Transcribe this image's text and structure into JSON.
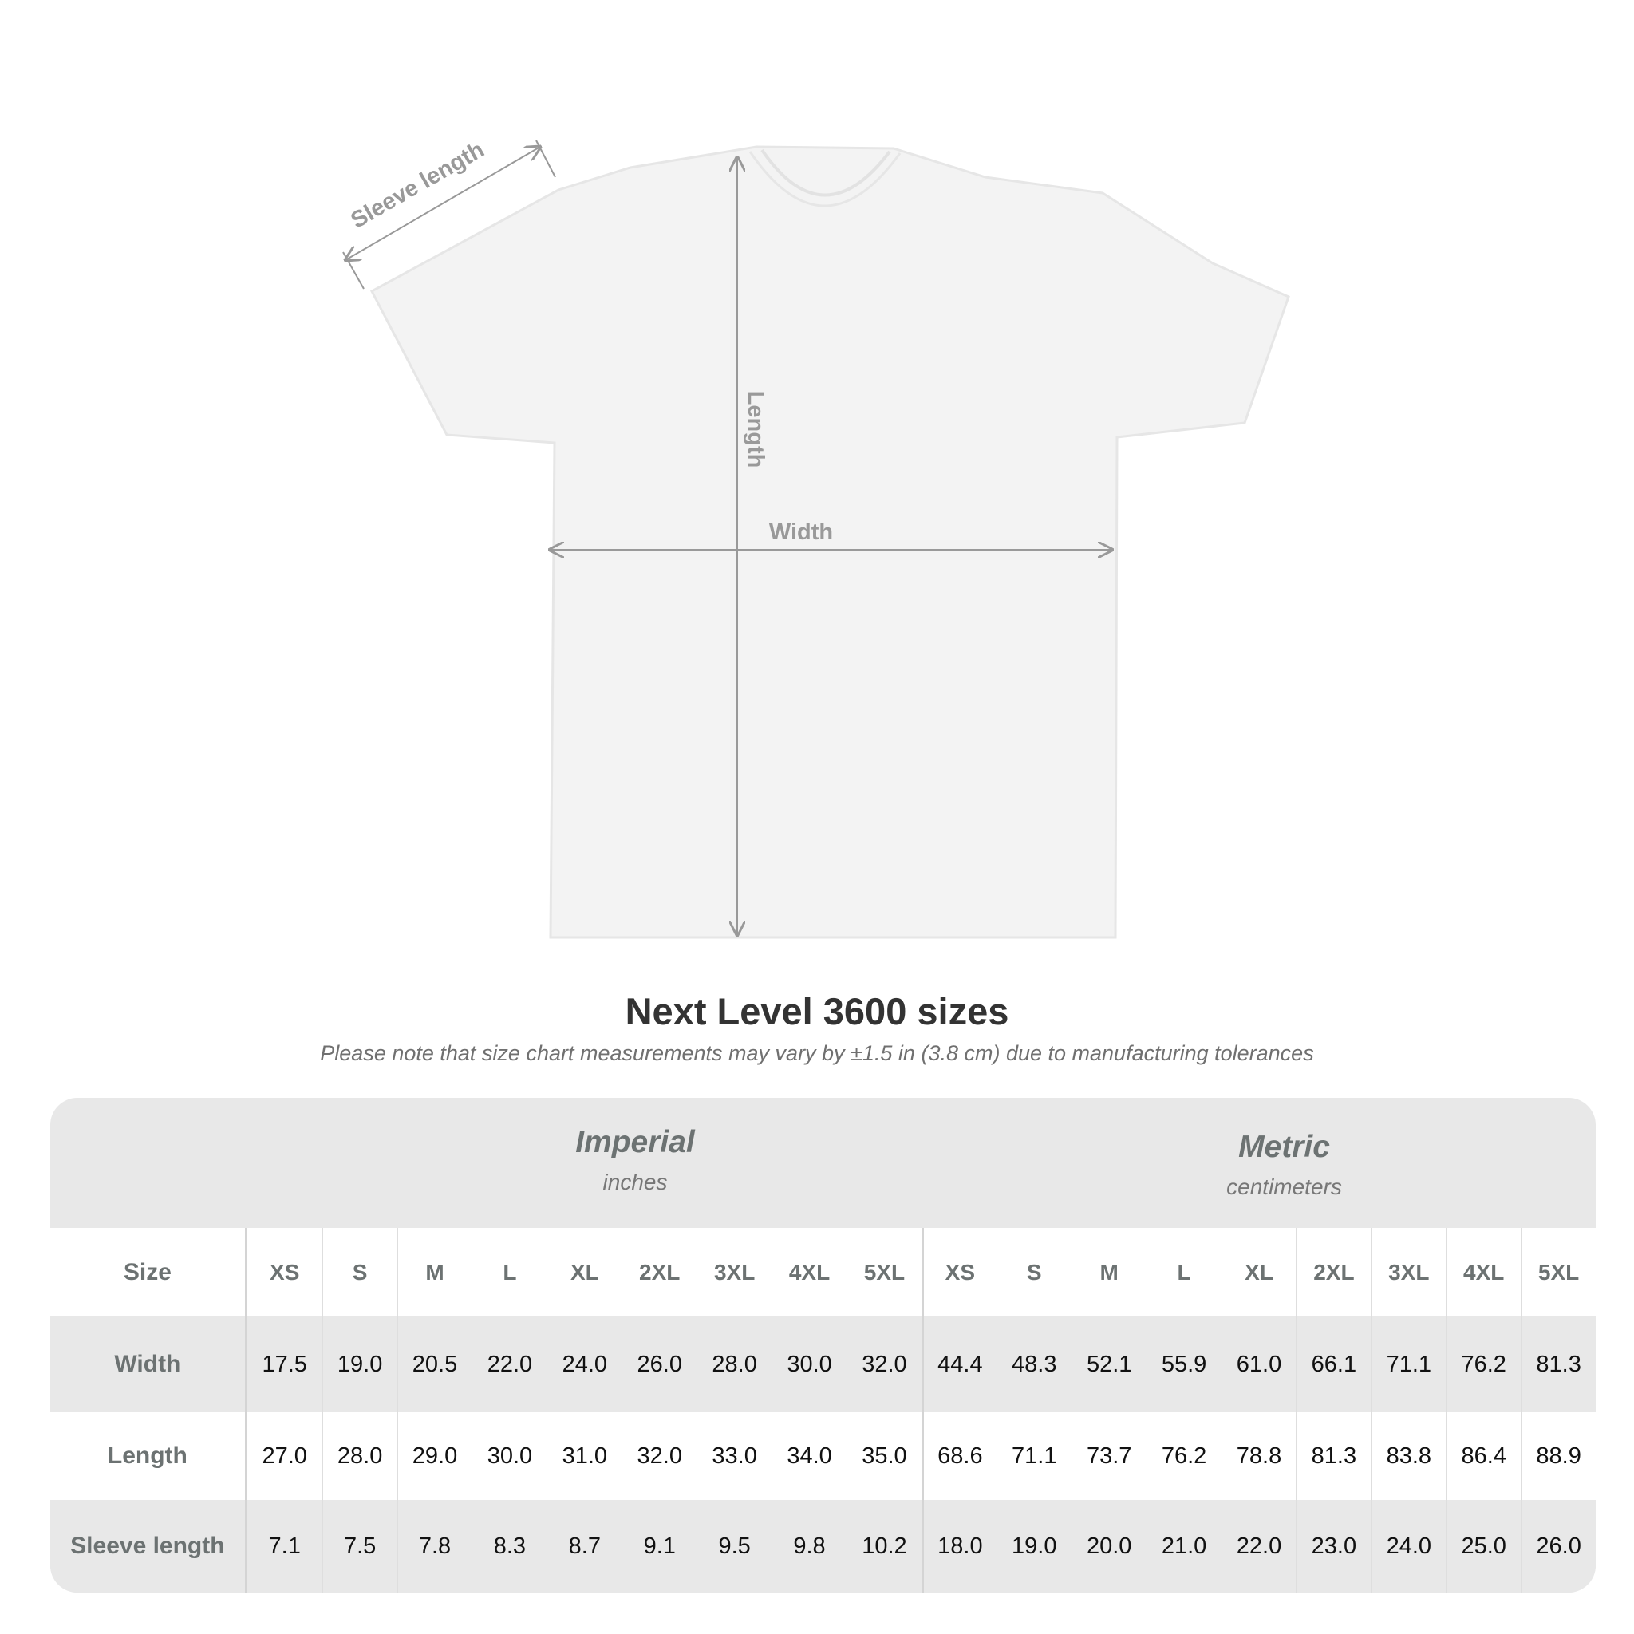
{
  "diagram": {
    "labels": {
      "sleeve": "Sleeve length",
      "length": "Length",
      "width": "Width"
    }
  },
  "title": "Next Level 3600 sizes",
  "note": "Please note that size chart measurements may vary by ±1.5 in (3.8 cm) due to manufacturing tolerances",
  "table": {
    "imperial": {
      "name": "Imperial",
      "unit": "inches"
    },
    "metric": {
      "name": "Metric",
      "unit": "centimeters"
    },
    "size_label": "Size",
    "sizes": [
      "XS",
      "S",
      "M",
      "L",
      "XL",
      "2XL",
      "3XL",
      "4XL",
      "5XL"
    ],
    "rows": [
      {
        "label": "Width",
        "imperial": [
          "17.5",
          "19.0",
          "20.5",
          "22.0",
          "24.0",
          "26.0",
          "28.0",
          "30.0",
          "32.0"
        ],
        "metric": [
          "44.4",
          "48.3",
          "52.1",
          "55.9",
          "61.0",
          "66.1",
          "71.1",
          "76.2",
          "81.3"
        ]
      },
      {
        "label": "Length",
        "imperial": [
          "27.0",
          "28.0",
          "29.0",
          "30.0",
          "31.0",
          "32.0",
          "33.0",
          "34.0",
          "35.0"
        ],
        "metric": [
          "68.6",
          "71.1",
          "73.7",
          "76.2",
          "78.8",
          "81.3",
          "83.8",
          "86.4",
          "88.9"
        ]
      },
      {
        "label": "Sleeve length",
        "imperial": [
          "7.1",
          "7.5",
          "7.8",
          "8.3",
          "8.7",
          "9.1",
          "9.5",
          "9.8",
          "10.2"
        ],
        "metric": [
          "18.0",
          "19.0",
          "20.0",
          "21.0",
          "22.0",
          "23.0",
          "24.0",
          "25.0",
          "26.0"
        ]
      }
    ]
  }
}
